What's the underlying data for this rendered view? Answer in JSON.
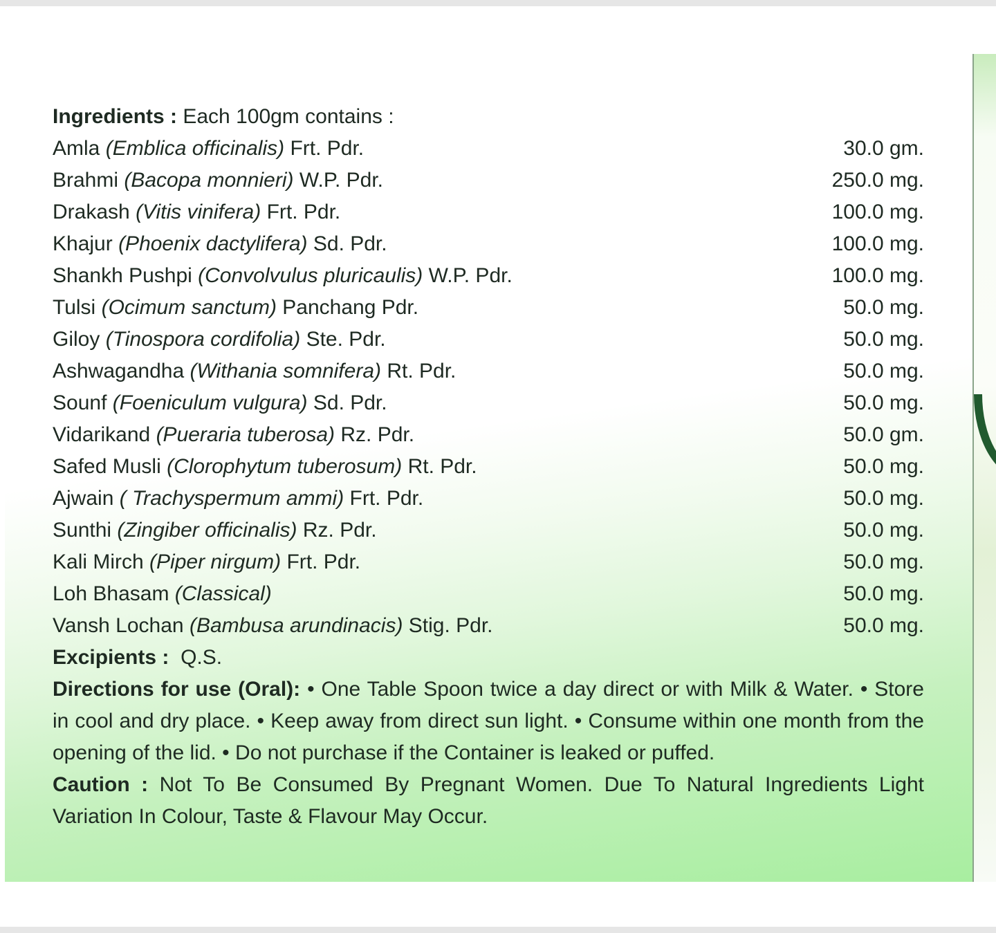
{
  "heading": {
    "label": "Ingredients :",
    "text": "Each 100gm contains :"
  },
  "ingredients": [
    {
      "name": "Amla",
      "botanical": "(Emblica officinalis)",
      "part": "Frt. Pdr.",
      "qty": "30.0 gm."
    },
    {
      "name": "Brahmi",
      "botanical": "(Bacopa monnieri)",
      "part": "W.P. Pdr.",
      "qty": "250.0 mg."
    },
    {
      "name": "Drakash",
      "botanical": "(Vitis vinifera)",
      "part": "Frt. Pdr.",
      "qty": "100.0 mg."
    },
    {
      "name": "Khajur",
      "botanical": "(Phoenix dactylifera)",
      "part": "Sd. Pdr.",
      "qty": "100.0 mg."
    },
    {
      "name": "Shankh Pushpi",
      "botanical": "(Convolvulus pluricaulis)",
      "part": "W.P. Pdr.",
      "qty": "100.0 mg."
    },
    {
      "name": "Tulsi",
      "botanical": "(Ocimum sanctum)",
      "part": "Panchang Pdr.",
      "qty": "50.0 mg."
    },
    {
      "name": "Giloy",
      "botanical": "(Tinospora cordifolia)",
      "part": "Ste. Pdr.",
      "qty": "50.0 mg."
    },
    {
      "name": "Ashwagandha",
      "botanical": "(Withania somnifera)",
      "part": "Rt. Pdr.",
      "qty": "50.0 mg."
    },
    {
      "name": "Sounf",
      "botanical": "(Foeniculum vulgura)",
      "part": "Sd. Pdr.",
      "qty": "50.0 mg."
    },
    {
      "name": "Vidarikand",
      "botanical": "(Pueraria tuberosa)",
      "part": "Rz. Pdr.",
      "qty": "50.0 gm."
    },
    {
      "name": "Safed Musli",
      "botanical": "(Clorophytum tuberosum)",
      "part": "Rt. Pdr.",
      "qty": "50.0 mg."
    },
    {
      "name": "Ajwain",
      "botanical": "( Trachyspermum ammi)",
      "part": "Frt. Pdr.",
      "qty": "50.0 mg."
    },
    {
      "name": "Sunthi",
      "botanical": "(Zingiber officinalis)",
      "part": "Rz. Pdr.",
      "qty": "50.0 mg."
    },
    {
      "name": "Kali Mirch",
      "botanical": "(Piper nirgum)",
      "part": "Frt. Pdr.",
      "qty": "50.0 mg."
    },
    {
      "name": "Loh Bhasam ",
      "botanical": "(Classical)",
      "part": "",
      "qty": "50.0 mg."
    },
    {
      "name": "Vansh Lochan",
      "botanical": "(Bambusa arundinacis)",
      "part": "Stig. Pdr.",
      "qty": "50.0 mg."
    }
  ],
  "excipients": {
    "label": "Excipients :",
    "text": "Q.S."
  },
  "directions": {
    "label": "Directions for use (Oral):",
    "text": "• One Table Spoon twice a day direct or with Milk & Water. • Store in cool and dry place. • Keep away from direct sun light. • Consume within one month from the opening of the lid. • Do not purchase if the Container is leaked or puffed."
  },
  "caution": {
    "label": "Caution :",
    "text": "Not To Be Consumed By Pregnant Women. Due To Natural Ingredients Light Variation In Colour, Taste & Flavour May Occur."
  },
  "colors": {
    "panel_green": "#a8eea0",
    "leaf_green": "#215a2f",
    "text": "#1e2a22"
  }
}
